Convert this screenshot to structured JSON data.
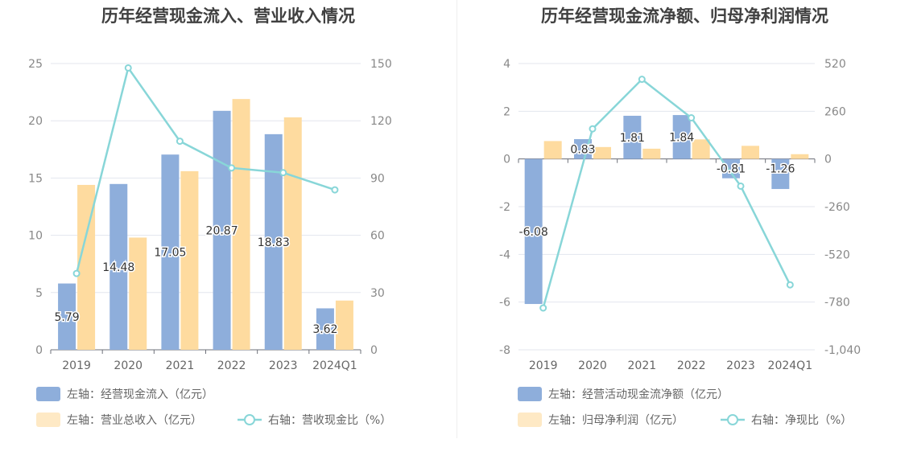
{
  "chart_data": [
    {
      "type": "bar",
      "title": "历年经营现金流入、营业收入情况",
      "categories": [
        "2019",
        "2020",
        "2021",
        "2022",
        "2023",
        "2024Q1"
      ],
      "left_axis": {
        "ticks": [
          "0",
          "5",
          "10",
          "15",
          "20",
          "25"
        ],
        "ylim": [
          0,
          25
        ]
      },
      "right_axis": {
        "ticks": [
          "0",
          "30",
          "60",
          "90",
          "120",
          "150"
        ],
        "ylim": [
          0,
          150
        ]
      },
      "series": [
        {
          "name": "左轴：经营现金流入（亿元）",
          "type": "bar",
          "axis": "left",
          "color": "#8eaedb",
          "values": [
            5.79,
            14.48,
            17.05,
            20.87,
            18.83,
            3.62
          ],
          "labels": [
            "5.79",
            "14.48",
            "17.05",
            "20.87",
            "18.83",
            "3.62"
          ]
        },
        {
          "name": "左轴：营业总收入（亿元）",
          "type": "bar",
          "axis": "left",
          "color": "#fedb9f",
          "values": [
            14.4,
            9.8,
            15.6,
            21.9,
            20.3,
            4.3
          ]
        },
        {
          "name": "右轴：营收现金比（%）",
          "type": "line",
          "axis": "right",
          "color": "#88d6d8",
          "values": [
            40,
            147.7,
            109.3,
            95.3,
            92.8,
            83.8
          ]
        }
      ],
      "legend_position": "bottom-left"
    },
    {
      "type": "bar",
      "title": "历年经营现金流净额、归母净利润情况",
      "categories": [
        "2019",
        "2020",
        "2021",
        "2022",
        "2023",
        "2024Q1"
      ],
      "left_axis": {
        "ticks": [
          "-8",
          "-6",
          "-4",
          "-2",
          "0",
          "2",
          "4"
        ],
        "ylim": [
          -8,
          4
        ]
      },
      "right_axis": {
        "ticks": [
          "-1,040",
          "-780",
          "-520",
          "-260",
          "0",
          "260",
          "520"
        ],
        "ylim": [
          -1040,
          520
        ]
      },
      "series": [
        {
          "name": "左轴：经营活动现金流净额（亿元）",
          "type": "bar",
          "axis": "left",
          "color": "#8eaedb",
          "values": [
            -6.08,
            0.83,
            1.81,
            1.84,
            -0.81,
            -1.26
          ],
          "labels": [
            "-6.08",
            "0.83",
            "1.81",
            "1.84",
            "-0.81",
            "-1.26"
          ]
        },
        {
          "name": "左轴：归母净利润（亿元）",
          "type": "bar",
          "axis": "left",
          "color": "#fedb9f",
          "values": [
            0.75,
            0.5,
            0.43,
            0.82,
            0.55,
            0.2
          ]
        },
        {
          "name": "右轴：净现比（%）",
          "type": "line",
          "axis": "right",
          "color": "#88d6d8",
          "values": [
            -812,
            164,
            434,
            224,
            -148,
            -686
          ]
        }
      ],
      "legend_position": "bottom-left"
    }
  ]
}
